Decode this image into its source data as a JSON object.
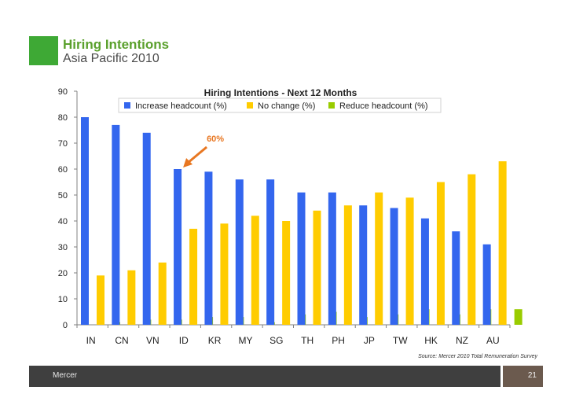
{
  "slide": {
    "title": "Hiring Intentions",
    "subtitle": "Asia Pacific 2010",
    "source": "Source: Mercer 2010 Total Remuneration Survey",
    "footer_label": "Mercer",
    "page_number": "21"
  },
  "colors": {
    "accent": "#3ea935",
    "footer": "#3f3f3f",
    "callout": "#e87722"
  },
  "chart_data": {
    "type": "bar",
    "title": "Hiring Intentions - Next 12 Months",
    "xlabel": "",
    "ylabel": "",
    "ylim": [
      0,
      90
    ],
    "yticks": [
      0,
      10,
      20,
      30,
      40,
      50,
      60,
      70,
      80,
      90
    ],
    "grid": false,
    "legend_position": "top",
    "categories": [
      "IN",
      "CN",
      "VN",
      "ID",
      "KR",
      "MY",
      "SG",
      "TH",
      "PH",
      "JP",
      "TW",
      "HK",
      "NZ",
      "AU"
    ],
    "series": [
      {
        "name": "Increase headcount (%)",
        "color": "#3366ee",
        "values": [
          80,
          77,
          74,
          60,
          59,
          56,
          56,
          51,
          51,
          46,
          45,
          41,
          36,
          31
        ]
      },
      {
        "name": "No change (%)",
        "color": "#ffcc00",
        "values": [
          19,
          21,
          24,
          37,
          39,
          42,
          40,
          44,
          46,
          51,
          49,
          55,
          58,
          63
        ]
      },
      {
        "name": "Reduce headcount (%)",
        "color": "#99cc00",
        "values": [
          1,
          2,
          2,
          3,
          3,
          1,
          4,
          5,
          3,
          4,
          6,
          4,
          6,
          6
        ]
      }
    ],
    "annotation": {
      "text": "60%",
      "category": "ID",
      "value": 60
    }
  }
}
